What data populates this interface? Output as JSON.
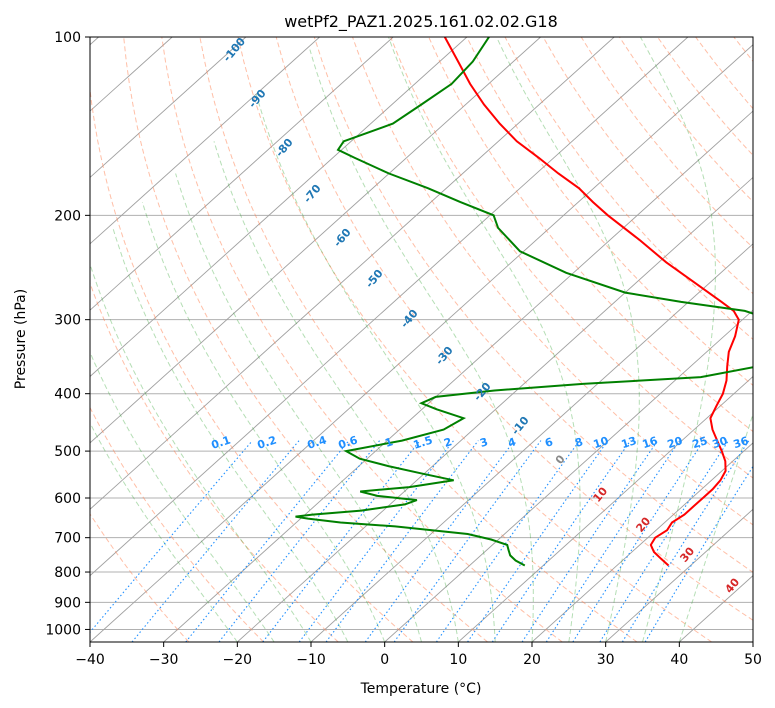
{
  "title": "wetPf2_PAZ1.2025.161.02.02.G18",
  "colors": {
    "temperature": "#ff0000",
    "dewpoint": "#008000",
    "dry_adiabat": "#ff7f50",
    "moist_adiabat": "#2ca02c",
    "mixing_ratio": "#1f8fff",
    "isotherm": "#808080",
    "isobar": "#a0a0a0",
    "dry_adiabat_label": "#1f77b4",
    "isotherm_label": "#d62728"
  },
  "chart_data": {
    "type": "line",
    "subtype": "skew-t log-p",
    "title": "wetPf2_PAZ1.2025.161.02.02.G18",
    "xlabel": "Temperature (°C)",
    "ylabel": "Pressure (hPa)",
    "xlim": [
      -40,
      50
    ],
    "ylim": [
      1050,
      100
    ],
    "y_scale": "log",
    "grid": true,
    "x_ticks": [
      "−40",
      "−30",
      "−20",
      "−10",
      "0",
      "10",
      "20",
      "30",
      "40",
      "50"
    ],
    "y_ticks": [
      "100",
      "200",
      "300",
      "400",
      "500",
      "600",
      "700",
      "800",
      "900",
      "1000"
    ],
    "series": [
      {
        "role": "temperature",
        "pressure": [
          780,
          760,
          740,
          720,
          700,
          680,
          660,
          640,
          620,
          600,
          580,
          560,
          540,
          520,
          500,
          480,
          460,
          440,
          420,
          400,
          380,
          360,
          340,
          320,
          300,
          290,
          280,
          260,
          240,
          220,
          200,
          190,
          180,
          170,
          160,
          150,
          140,
          130,
          120,
          110,
          100
        ],
        "values": [
          27.0,
          25.0,
          23.0,
          21.5,
          21.0,
          21.5,
          21.0,
          21.5,
          21.5,
          21.5,
          21.5,
          21.2,
          20.5,
          19.0,
          17.0,
          14.8,
          12.5,
          10.5,
          9.5,
          8.5,
          7.0,
          5.0,
          3.0,
          1.5,
          -0.5,
          -2.5,
          -5.5,
          -12.0,
          -19.0,
          -26.0,
          -34.0,
          -38.0,
          -42.0,
          -47.0,
          -52.0,
          -57.5,
          -62.5,
          -67.5,
          -72.5,
          -77.5,
          -83.0
        ]
      },
      {
        "role": "dewpoint",
        "pressure": [
          780,
          765,
          750,
          735,
          720,
          705,
          690,
          670,
          660,
          650,
          645,
          640,
          630,
          615,
          605,
          595,
          585,
          575,
          560,
          545,
          530,
          515,
          500,
          480,
          460,
          440,
          425,
          415,
          405,
          395,
          385,
          375,
          360,
          345,
          335,
          325,
          315,
          305,
          300,
          290,
          280,
          270,
          250,
          230,
          210,
          200,
          190,
          180,
          170,
          160,
          155,
          150,
          145,
          140,
          130,
          120,
          110,
          100
        ],
        "values": [
          7.5,
          5.5,
          4.0,
          3.0,
          2.0,
          -1.0,
          -5.0,
          -16.0,
          -24.0,
          -29.0,
          -31.0,
          -29.0,
          -23.0,
          -18.0,
          -17.0,
          -23.0,
          -26.0,
          -20.0,
          -15.0,
          -20.5,
          -26.0,
          -31.0,
          -34.0,
          -28.0,
          -24.0,
          -23.0,
          -28.0,
          -31.0,
          -30.0,
          -23.0,
          -12.0,
          3.0,
          9.0,
          12.0,
          13.5,
          13.0,
          10.0,
          6.0,
          4.0,
          -1.0,
          -11.0,
          -20.0,
          -31.0,
          -40.5,
          -47.0,
          -49.5,
          -56.0,
          -62.5,
          -70.0,
          -77.0,
          -80.5,
          -81.0,
          -79.0,
          -77.0,
          -76.0,
          -75.0,
          -75.5,
          -77.0
        ]
      }
    ],
    "annotations": {
      "dry_adiabat_labels": [
        "-100",
        "-90",
        "-80",
        "-70",
        "-60",
        "-50",
        "-40",
        "-30",
        "-20",
        "-10",
        "0",
        "10",
        "20",
        "30",
        "40"
      ],
      "mixing_ratio_labels": [
        "0.1",
        "0.2",
        "0.4",
        "0.6",
        "1",
        "1.5",
        "2",
        "3",
        "4",
        "6",
        "8",
        "10",
        "13",
        "16",
        "20",
        "25",
        "30",
        "36"
      ]
    }
  }
}
